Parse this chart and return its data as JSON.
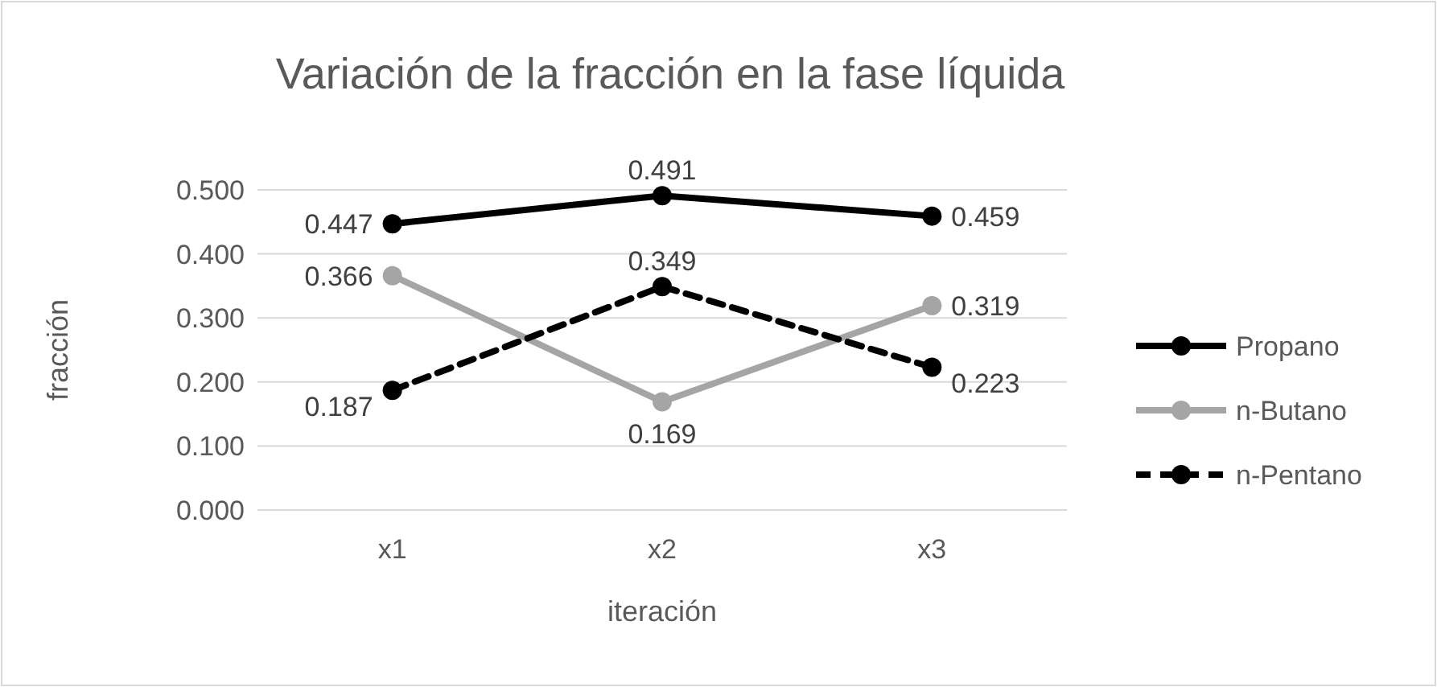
{
  "chart_data": {
    "type": "line",
    "title": "Variación de la fracción en la fase líquida",
    "xlabel": "iteración",
    "ylabel": "fracción",
    "categories": [
      "x1",
      "x2",
      "x3"
    ],
    "series": [
      {
        "name": "Propano",
        "color": "#000000",
        "values": [
          0.447,
          0.491,
          0.459
        ],
        "line_style": "solid"
      },
      {
        "name": "n-Butano",
        "color": "#a5a5a5",
        "values": [
          0.366,
          0.169,
          0.319
        ],
        "line_style": "solid"
      },
      {
        "name": "n-Pentano",
        "color": "#000000",
        "values": [
          0.187,
          0.349,
          0.223
        ],
        "line_style": "dashed"
      }
    ],
    "ylim": [
      0,
      0.5
    ],
    "yticks": [
      {
        "value": 0,
        "label": "0.000"
      },
      {
        "value": 0.1,
        "label": "0.100"
      },
      {
        "value": 0.2,
        "label": "0.200"
      },
      {
        "value": 0.3,
        "label": "0.300"
      },
      {
        "value": 0.4,
        "label": "0.400"
      },
      {
        "value": 0.5,
        "label": "0.500"
      }
    ],
    "grid": "y",
    "legend": "right",
    "marker": "circle",
    "data_labels": true
  }
}
